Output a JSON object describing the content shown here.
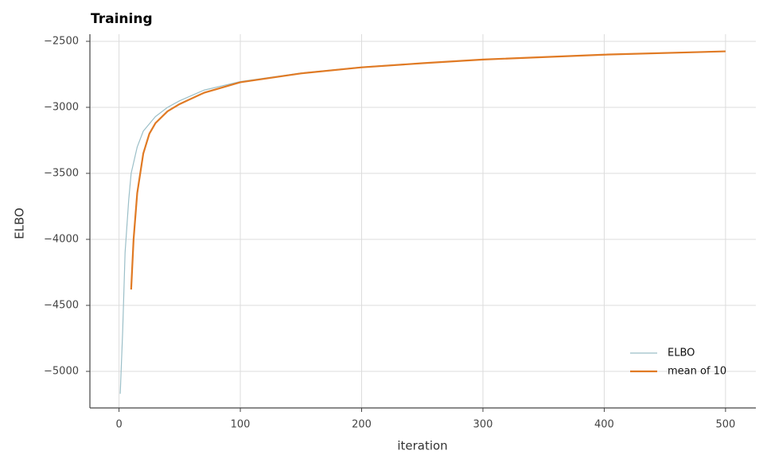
{
  "chart_data": {
    "type": "line",
    "title": "Training",
    "x_label": "iteration",
    "y_label": "ELBO",
    "series": [
      {
        "name": "ELBO",
        "color": "#9bbfc8",
        "width": 1.2,
        "x": [
          1,
          3,
          5,
          8,
          10,
          15,
          20,
          30,
          40,
          50,
          70,
          100,
          150,
          200,
          250,
          300,
          400,
          500
        ],
        "values": [
          -5170,
          -4700,
          -4100,
          -3700,
          -3500,
          -3300,
          -3180,
          -3070,
          -3000,
          -2950,
          -2870,
          -2805,
          -2740,
          -2695,
          -2665,
          -2637,
          -2600,
          -2575
        ]
      },
      {
        "name": "mean of 10",
        "color": "#e07a24",
        "width": 2.2,
        "x": [
          10,
          12,
          15,
          20,
          25,
          30,
          40,
          50,
          70,
          100,
          150,
          200,
          250,
          300,
          400,
          500
        ],
        "values": [
          -4380,
          -4000,
          -3650,
          -3350,
          -3200,
          -3120,
          -3030,
          -2975,
          -2890,
          -2810,
          -2743,
          -2697,
          -2666,
          -2638,
          -2601,
          -2576
        ]
      }
    ],
    "xlim": [
      -24,
      525
    ],
    "ylim": [
      -5277,
      -2446
    ],
    "xticks": [
      0,
      100,
      200,
      300,
      400,
      500
    ],
    "yticks": [
      {
        "value": -5000,
        "label": "−5000"
      },
      {
        "value": -4500,
        "label": "−4500"
      },
      {
        "value": -4000,
        "label": "−4000"
      },
      {
        "value": -3500,
        "label": "−3500"
      },
      {
        "value": -3000,
        "label": "−3000"
      },
      {
        "value": -2500,
        "label": "−2500"
      }
    ],
    "grid": true,
    "legend": "lower right"
  }
}
